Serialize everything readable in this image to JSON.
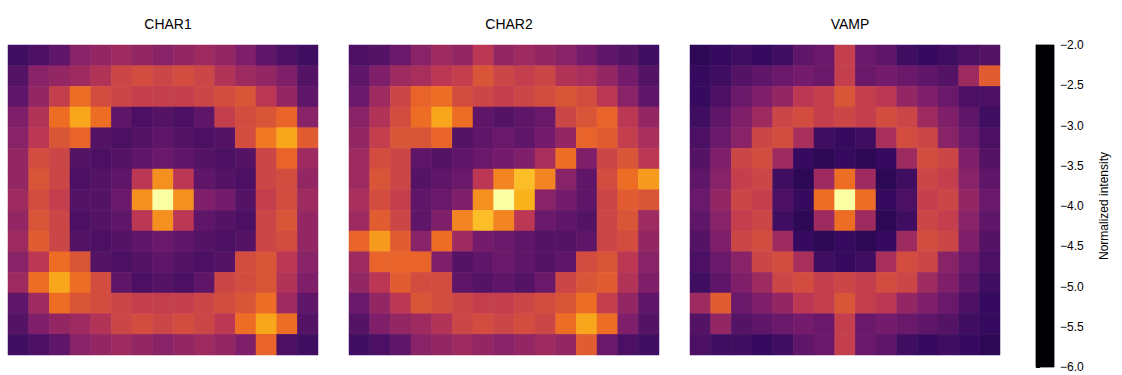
{
  "chart_data": {
    "type": "heatmap",
    "tick_labels": false,
    "panels": [
      {
        "title": "CHAR1",
        "cells": [
          [
            -5.2,
            -5.1,
            -4.9,
            -4.5,
            -4.4,
            -4.3,
            -4.4,
            -4.5,
            -4.4,
            -4.3,
            -4.4,
            -4.6,
            -4.9,
            -5.1,
            -5.2
          ],
          [
            -5.0,
            -4.5,
            -4.4,
            -4.3,
            -4.1,
            -3.8,
            -3.7,
            -3.8,
            -3.7,
            -3.8,
            -4.1,
            -4.3,
            -4.4,
            -4.6,
            -5.0
          ],
          [
            -4.9,
            -4.4,
            -3.9,
            -3.3,
            -3.7,
            -3.8,
            -3.9,
            -3.9,
            -3.9,
            -3.8,
            -3.7,
            -3.6,
            -4.0,
            -4.4,
            -4.9
          ],
          [
            -4.6,
            -4.1,
            -3.3,
            -2.8,
            -3.3,
            -4.9,
            -5.1,
            -5.0,
            -5.1,
            -4.9,
            -3.9,
            -3.7,
            -3.6,
            -3.4,
            -4.5
          ],
          [
            -4.5,
            -4.0,
            -3.6,
            -3.4,
            -5.0,
            -5.1,
            -5.0,
            -4.9,
            -5.0,
            -5.1,
            -5.0,
            -3.7,
            -3.2,
            -2.8,
            -3.5
          ],
          [
            -4.4,
            -3.7,
            -3.8,
            -5.0,
            -5.1,
            -5.0,
            -4.9,
            -4.8,
            -4.9,
            -5.0,
            -5.1,
            -5.0,
            -3.8,
            -3.4,
            -4.3
          ],
          [
            -4.4,
            -3.6,
            -3.8,
            -5.1,
            -5.0,
            -4.9,
            -4.0,
            -3.0,
            -4.0,
            -4.9,
            -5.0,
            -5.1,
            -3.8,
            -3.7,
            -4.4
          ],
          [
            -4.3,
            -3.7,
            -3.9,
            -5.0,
            -5.0,
            -4.8,
            -3.0,
            -2.0,
            -3.0,
            -4.6,
            -4.7,
            -5.0,
            -3.9,
            -3.7,
            -4.3
          ],
          [
            -4.4,
            -3.6,
            -3.8,
            -5.1,
            -5.0,
            -4.9,
            -4.0,
            -3.0,
            -4.0,
            -4.9,
            -5.0,
            -5.1,
            -3.8,
            -3.6,
            -4.4
          ],
          [
            -4.3,
            -3.5,
            -3.8,
            -5.0,
            -5.1,
            -5.0,
            -4.9,
            -4.8,
            -4.9,
            -5.0,
            -5.1,
            -5.0,
            -3.8,
            -3.7,
            -4.4
          ],
          [
            -4.5,
            -4.0,
            -3.3,
            -3.6,
            -5.0,
            -5.1,
            -5.0,
            -4.9,
            -5.0,
            -5.1,
            -5.0,
            -3.7,
            -3.6,
            -4.0,
            -4.5
          ],
          [
            -4.3,
            -3.3,
            -2.8,
            -3.3,
            -3.7,
            -4.9,
            -5.1,
            -5.0,
            -5.1,
            -4.9,
            -3.8,
            -3.7,
            -3.6,
            -4.1,
            -4.6
          ],
          [
            -4.9,
            -4.3,
            -3.3,
            -3.6,
            -3.7,
            -3.8,
            -3.9,
            -3.9,
            -3.9,
            -3.8,
            -3.7,
            -3.6,
            -3.3,
            -4.3,
            -4.9
          ],
          [
            -5.0,
            -4.6,
            -4.4,
            -4.3,
            -4.1,
            -3.8,
            -3.7,
            -3.8,
            -3.7,
            -3.8,
            -4.0,
            -3.3,
            -2.8,
            -3.3,
            -5.0
          ],
          [
            -5.2,
            -5.1,
            -4.9,
            -4.5,
            -4.4,
            -4.3,
            -4.4,
            -4.5,
            -4.4,
            -4.3,
            -4.4,
            -4.6,
            -3.4,
            -5.1,
            -5.2
          ]
        ]
      },
      {
        "title": "CHAR2",
        "cells": [
          [
            -5.1,
            -5.0,
            -4.8,
            -4.5,
            -4.3,
            -4.4,
            -4.0,
            -4.4,
            -4.3,
            -4.4,
            -4.5,
            -4.7,
            -4.9,
            -5.0,
            -5.2
          ],
          [
            -4.9,
            -4.6,
            -4.3,
            -4.2,
            -4.0,
            -3.9,
            -3.6,
            -3.8,
            -3.9,
            -3.8,
            -4.1,
            -4.2,
            -4.4,
            -4.7,
            -5.0
          ],
          [
            -4.8,
            -4.3,
            -3.8,
            -3.4,
            -3.3,
            -3.7,
            -3.8,
            -3.9,
            -3.8,
            -3.7,
            -3.6,
            -3.7,
            -4.0,
            -4.5,
            -4.9
          ],
          [
            -4.5,
            -4.1,
            -3.7,
            -3.3,
            -2.8,
            -3.3,
            -4.9,
            -5.0,
            -4.9,
            -4.8,
            -3.8,
            -3.6,
            -3.4,
            -4.0,
            -4.4
          ],
          [
            -4.4,
            -3.9,
            -3.6,
            -3.6,
            -3.4,
            -5.0,
            -4.9,
            -4.8,
            -4.9,
            -4.7,
            -4.4,
            -3.4,
            -3.5,
            -3.9,
            -4.2
          ],
          [
            -4.3,
            -3.7,
            -3.8,
            -4.9,
            -5.0,
            -4.9,
            -4.8,
            -4.7,
            -4.6,
            -4.2,
            -3.3,
            -4.6,
            -3.8,
            -3.6,
            -4.0
          ],
          [
            -4.3,
            -3.6,
            -3.8,
            -5.0,
            -4.9,
            -4.8,
            -4.0,
            -3.1,
            -2.6,
            -3.1,
            -4.5,
            -4.9,
            -3.7,
            -3.3,
            -2.9
          ],
          [
            -4.2,
            -3.7,
            -3.9,
            -4.9,
            -4.8,
            -4.6,
            -3.0,
            -2.0,
            -2.7,
            -4.5,
            -4.7,
            -4.9,
            -3.8,
            -3.5,
            -3.6
          ],
          [
            -4.3,
            -3.5,
            -3.8,
            -4.9,
            -4.6,
            -3.1,
            -2.6,
            -3.1,
            -4.0,
            -4.8,
            -4.9,
            -5.0,
            -3.8,
            -3.6,
            -4.3
          ],
          [
            -3.4,
            -2.9,
            -3.5,
            -4.5,
            -3.3,
            -4.3,
            -4.7,
            -4.8,
            -4.9,
            -5.0,
            -5.0,
            -4.9,
            -3.8,
            -3.7,
            -4.4
          ],
          [
            -4.3,
            -3.4,
            -3.4,
            -3.4,
            -4.6,
            -5.0,
            -4.9,
            -4.8,
            -4.9,
            -5.0,
            -4.9,
            -3.7,
            -3.6,
            -4.0,
            -4.5
          ],
          [
            -4.4,
            -4.0,
            -3.5,
            -3.7,
            -3.7,
            -4.9,
            -5.0,
            -4.9,
            -5.0,
            -4.8,
            -3.8,
            -3.6,
            -3.5,
            -4.1,
            -4.6
          ],
          [
            -4.8,
            -4.4,
            -4.0,
            -3.6,
            -3.7,
            -3.8,
            -3.9,
            -3.9,
            -3.8,
            -3.7,
            -3.6,
            -3.3,
            -3.9,
            -4.4,
            -4.9
          ],
          [
            -5.0,
            -4.6,
            -4.4,
            -4.3,
            -4.1,
            -3.8,
            -3.7,
            -3.8,
            -3.7,
            -3.8,
            -3.3,
            -2.8,
            -3.3,
            -4.6,
            -5.0
          ],
          [
            -5.2,
            -5.1,
            -4.9,
            -4.5,
            -4.4,
            -4.3,
            -4.4,
            -4.5,
            -4.4,
            -4.3,
            -4.4,
            -3.5,
            -4.8,
            -5.1,
            -5.2
          ]
        ]
      },
      {
        "title": "VAMP",
        "cells": [
          [
            -5.4,
            -5.3,
            -5.2,
            -5.3,
            -5.2,
            -4.9,
            -4.8,
            -3.9,
            -4.8,
            -4.9,
            -5.2,
            -5.3,
            -5.2,
            -5.1,
            -5.0
          ],
          [
            -5.3,
            -5.2,
            -5.0,
            -4.9,
            -4.8,
            -4.7,
            -4.8,
            -3.9,
            -4.8,
            -4.7,
            -4.8,
            -4.9,
            -5.0,
            -4.3,
            -3.5
          ],
          [
            -5.3,
            -5.1,
            -4.8,
            -4.6,
            -4.4,
            -4.0,
            -3.9,
            -3.6,
            -3.9,
            -4.0,
            -4.4,
            -4.6,
            -4.8,
            -5.1,
            -5.1
          ],
          [
            -5.2,
            -4.9,
            -4.6,
            -4.3,
            -3.8,
            -3.7,
            -3.9,
            -3.8,
            -3.9,
            -3.7,
            -3.8,
            -4.3,
            -4.6,
            -4.9,
            -5.2
          ],
          [
            -5.1,
            -4.8,
            -4.5,
            -3.8,
            -3.7,
            -4.2,
            -5.2,
            -5.3,
            -5.2,
            -4.2,
            -3.7,
            -3.8,
            -4.5,
            -4.8,
            -5.1
          ],
          [
            -5.0,
            -4.6,
            -3.8,
            -3.7,
            -4.3,
            -5.3,
            -5.4,
            -5.3,
            -5.4,
            -5.3,
            -4.3,
            -3.7,
            -3.8,
            -4.6,
            -5.0
          ],
          [
            -4.9,
            -4.5,
            -3.9,
            -3.8,
            -5.2,
            -5.4,
            -4.3,
            -3.3,
            -4.3,
            -5.4,
            -5.2,
            -3.8,
            -3.9,
            -4.5,
            -4.9
          ],
          [
            -4.8,
            -4.4,
            -3.8,
            -3.9,
            -5.1,
            -5.3,
            -3.3,
            -2.0,
            -3.3,
            -5.3,
            -5.1,
            -3.9,
            -3.8,
            -4.4,
            -4.8
          ],
          [
            -4.9,
            -4.5,
            -3.9,
            -3.8,
            -5.2,
            -5.4,
            -4.3,
            -3.3,
            -4.3,
            -5.4,
            -5.2,
            -3.8,
            -3.9,
            -4.5,
            -4.9
          ],
          [
            -5.0,
            -4.6,
            -3.8,
            -3.7,
            -4.3,
            -5.3,
            -5.4,
            -5.3,
            -5.4,
            -5.3,
            -4.3,
            -3.7,
            -3.8,
            -4.6,
            -5.0
          ],
          [
            -5.1,
            -4.8,
            -4.5,
            -3.8,
            -3.7,
            -4.2,
            -5.2,
            -5.3,
            -5.2,
            -4.2,
            -3.7,
            -3.8,
            -4.5,
            -4.8,
            -5.1
          ],
          [
            -5.2,
            -4.9,
            -4.6,
            -4.3,
            -3.8,
            -3.7,
            -3.9,
            -3.8,
            -3.9,
            -3.7,
            -3.8,
            -4.3,
            -4.6,
            -4.9,
            -5.2
          ],
          [
            -4.3,
            -3.5,
            -4.8,
            -4.6,
            -4.4,
            -4.0,
            -3.9,
            -3.6,
            -3.9,
            -4.0,
            -4.4,
            -4.6,
            -4.8,
            -5.1,
            -5.3
          ],
          [
            -5.0,
            -4.4,
            -5.0,
            -4.9,
            -4.8,
            -4.7,
            -4.8,
            -3.9,
            -4.8,
            -4.7,
            -4.8,
            -4.9,
            -5.0,
            -5.2,
            -5.3
          ],
          [
            -5.1,
            -5.2,
            -5.2,
            -5.3,
            -5.2,
            -4.9,
            -4.8,
            -3.9,
            -4.8,
            -4.9,
            -5.2,
            -5.3,
            -5.2,
            -5.3,
            -5.4
          ]
        ]
      }
    ],
    "colorbar": {
      "label": "Normalized intensity",
      "range": [
        -6,
        -2
      ],
      "ticks": [
        {
          "value": -2,
          "label": "−2.0"
        },
        {
          "value": -2.5,
          "label": "−2.5"
        },
        {
          "value": -3,
          "label": "−3.0"
        },
        {
          "value": -3.5,
          "label": "−3.5"
        },
        {
          "value": -4,
          "label": "−4.0"
        },
        {
          "value": -4.5,
          "label": "−4.5"
        },
        {
          "value": -5,
          "label": "−5.0"
        },
        {
          "value": -5.5,
          "label": "−5.5"
        },
        {
          "value": -6,
          "label": "−6.0"
        }
      ],
      "colors": [
        "#000004",
        "#320a5e",
        "#781c6d",
        "#bc3754",
        "#ed6925",
        "#fbb61a",
        "#fcffa4"
      ]
    }
  }
}
